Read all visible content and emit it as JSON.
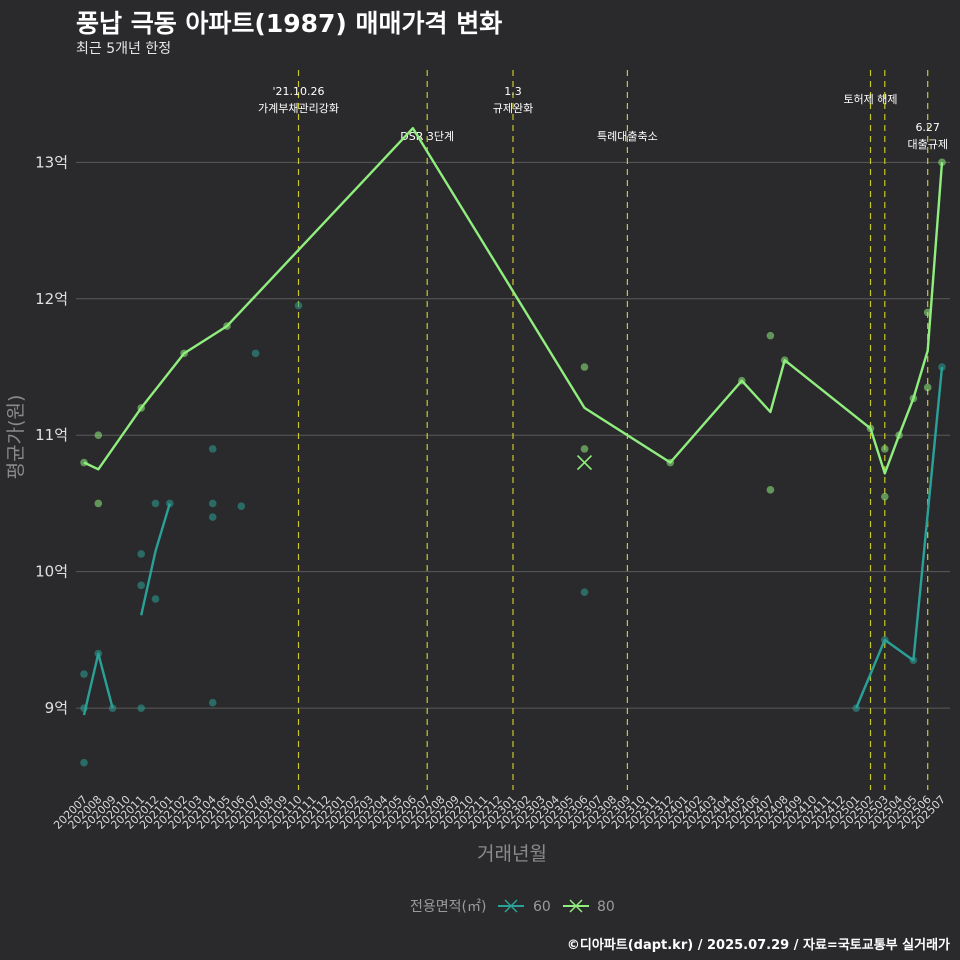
{
  "title": "풍납 극동 아파트(1987) 매매가격 변화",
  "subtitle": "최근 5개년 한정",
  "caption": "©디아파트(dapt.kr) / 2025.07.29 / 자료=국토교통부 실거래가",
  "colors": {
    "background": "#2a2a2c",
    "grid": "#5a5a5a",
    "vline": "#c8c82a",
    "series60": "#2aa198",
    "series80": "#90ee7e"
  },
  "chart_data": {
    "type": "line",
    "title": "풍납 극동 아파트(1987) 매매가격 변화",
    "xlabel": "거래년월",
    "ylabel": "평균가(원)",
    "ylim": [
      8.4,
      13.75
    ],
    "yticks": [
      9,
      10,
      11,
      12,
      13
    ],
    "ytick_labels": [
      "9억",
      "10억",
      "11억",
      "12억",
      "13억"
    ],
    "categories": [
      "202007",
      "202008",
      "202009",
      "202010",
      "202011",
      "202012",
      "202101",
      "202102",
      "202103",
      "202104",
      "202105",
      "202106",
      "202107",
      "202108",
      "202109",
      "202110",
      "202111",
      "202112",
      "202201",
      "202202",
      "202203",
      "202204",
      "202205",
      "202206",
      "202207",
      "202208",
      "202209",
      "202210",
      "202211",
      "202212",
      "202301",
      "202302",
      "202303",
      "202304",
      "202305",
      "202306",
      "202307",
      "202308",
      "202309",
      "202310",
      "202311",
      "202312",
      "202401",
      "202402",
      "202403",
      "202404",
      "202405",
      "202406",
      "202407",
      "202408",
      "202409",
      "202410",
      "202411",
      "202412",
      "202501",
      "202502",
      "202503",
      "202504",
      "202505",
      "202506",
      "202507"
    ],
    "legend_title": "전용면적(㎡)",
    "series": [
      {
        "name": "60",
        "segments": [
          [
            {
              "x": "202007",
              "y": 8.95
            },
            {
              "x": "202008",
              "y": 9.4
            },
            {
              "x": "202009",
              "y": 9.0
            }
          ],
          [
            {
              "x": "202011",
              "y": 9.68
            },
            {
              "x": "202012",
              "y": 10.15
            },
            {
              "x": "202101",
              "y": 10.5
            }
          ],
          [
            {
              "x": "202501",
              "y": 9.0
            },
            {
              "x": "202503",
              "y": 9.5
            },
            {
              "x": "202505",
              "y": 9.35
            },
            {
              "x": "202507",
              "y": 11.5
            }
          ]
        ],
        "points": [
          {
            "x": "202007",
            "y": 9.25
          },
          {
            "x": "202007",
            "y": 9.0
          },
          {
            "x": "202007",
            "y": 8.6
          },
          {
            "x": "202008",
            "y": 9.4
          },
          {
            "x": "202009",
            "y": 9.0
          },
          {
            "x": "202011",
            "y": 10.13
          },
          {
            "x": "202011",
            "y": 9.9
          },
          {
            "x": "202011",
            "y": 9.0
          },
          {
            "x": "202012",
            "y": 10.5
          },
          {
            "x": "202012",
            "y": 9.8
          },
          {
            "x": "202101",
            "y": 10.5
          },
          {
            "x": "202104",
            "y": 10.9
          },
          {
            "x": "202104",
            "y": 10.5
          },
          {
            "x": "202104",
            "y": 10.4
          },
          {
            "x": "202104",
            "y": 9.04
          },
          {
            "x": "202107",
            "y": 11.6
          },
          {
            "x": "202106",
            "y": 10.48
          },
          {
            "x": "202110",
            "y": 11.95
          },
          {
            "x": "202306",
            "y": 9.85
          },
          {
            "x": "202501",
            "y": 9.0
          },
          {
            "x": "202503",
            "y": 9.5
          },
          {
            "x": "202505",
            "y": 9.35
          },
          {
            "x": "202507",
            "y": 11.5
          }
        ]
      },
      {
        "name": "80",
        "segments": [
          [
            {
              "x": "202007",
              "y": 10.8
            },
            {
              "x": "202008",
              "y": 10.75
            },
            {
              "x": "202011",
              "y": 11.2
            },
            {
              "x": "202102",
              "y": 11.6
            },
            {
              "x": "202105",
              "y": 11.8
            },
            {
              "x": "202206",
              "y": 13.25
            },
            {
              "x": "202306",
              "y": 11.2
            },
            {
              "x": "202312",
              "y": 10.8
            },
            {
              "x": "202405",
              "y": 11.4
            },
            {
              "x": "202407",
              "y": 11.17
            },
            {
              "x": "202408",
              "y": 11.55
            },
            {
              "x": "202502",
              "y": 11.05
            },
            {
              "x": "202503",
              "y": 10.72
            },
            {
              "x": "202504",
              "y": 11.0
            },
            {
              "x": "202505",
              "y": 11.27
            },
            {
              "x": "202506",
              "y": 11.62
            },
            {
              "x": "202507",
              "y": 13.0
            }
          ]
        ],
        "points": [
          {
            "x": "202007",
            "y": 10.8
          },
          {
            "x": "202008",
            "y": 11.0
          },
          {
            "x": "202008",
            "y": 10.5
          },
          {
            "x": "202011",
            "y": 11.2
          },
          {
            "x": "202102",
            "y": 11.6
          },
          {
            "x": "202105",
            "y": 11.8
          },
          {
            "x": "202306",
            "y": 11.5
          },
          {
            "x": "202306",
            "y": 10.9
          },
          {
            "x": "202312",
            "y": 10.8
          },
          {
            "x": "202405",
            "y": 11.4
          },
          {
            "x": "202407",
            "y": 11.73
          },
          {
            "x": "202407",
            "y": 10.6
          },
          {
            "x": "202408",
            "y": 11.55
          },
          {
            "x": "202502",
            "y": 11.05
          },
          {
            "x": "202503",
            "y": 10.9
          },
          {
            "x": "202503",
            "y": 10.55
          },
          {
            "x": "202504",
            "y": 11.0
          },
          {
            "x": "202505",
            "y": 11.27
          },
          {
            "x": "202506",
            "y": 11.9
          },
          {
            "x": "202506",
            "y": 11.35
          },
          {
            "x": "202507",
            "y": 13.0
          }
        ],
        "markers": [
          {
            "x": "202306",
            "y": 10.8
          }
        ]
      }
    ],
    "annotations": [
      {
        "x": "202110",
        "lines": [
          "'21.10.26",
          "가계부채관리강화"
        ],
        "level": 1
      },
      {
        "x": "202207",
        "lines": [
          "DSR 3단계"
        ],
        "level": 2
      },
      {
        "x": "202301",
        "lines": [
          "1.3",
          "규제완화"
        ],
        "level": 1
      },
      {
        "x": "202309",
        "lines": [
          "특례대출축소"
        ],
        "level": 2
      },
      {
        "x": "202502",
        "lines": [
          "토허제 해제"
        ],
        "level": 0
      },
      {
        "x": "202503",
        "lines": [],
        "level": 0
      },
      {
        "x": "202506",
        "lines": [
          "6.27",
          "대출규제"
        ],
        "level": 3
      }
    ]
  }
}
